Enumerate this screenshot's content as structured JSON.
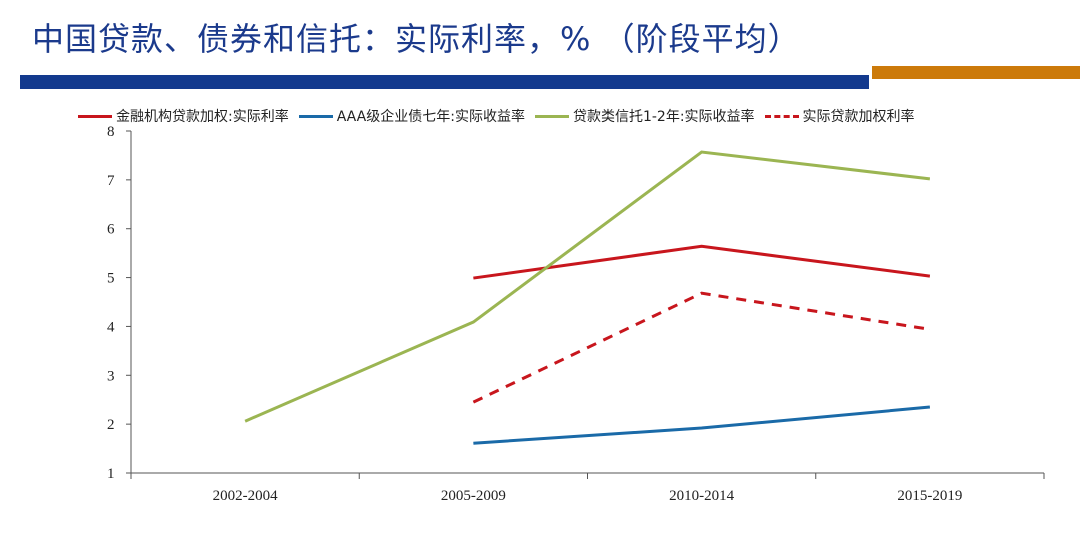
{
  "title": "中国贷款、债券和信托：实际利率，% （阶段平均）",
  "colors": {
    "title": "#1b3a8c",
    "bar_blue": "#133a8e",
    "bar_orange": "#cc7a0a"
  },
  "chart_data": {
    "type": "line",
    "categories": [
      "2002-2004",
      "2005-2009",
      "2010-2014",
      "2015-2019"
    ],
    "ylim": [
      1,
      8
    ],
    "yticks": [
      1,
      2,
      3,
      4,
      5,
      6,
      7,
      8
    ],
    "grid": false,
    "legend": "top",
    "series": [
      {
        "name": "金融机构贷款加权:实际利率",
        "color": "#c8161d",
        "dash": false,
        "values": [
          null,
          4.99,
          5.64,
          5.03
        ]
      },
      {
        "name": "AAA级企业债七年:实际收益率",
        "color": "#1a6aa8",
        "dash": false,
        "values": [
          null,
          1.61,
          1.92,
          2.35
        ]
      },
      {
        "name": "贷款类信托1-2年:实际收益率",
        "color": "#9bb552",
        "dash": false,
        "values": [
          2.06,
          4.09,
          7.57,
          7.02
        ]
      },
      {
        "name": "实际贷款加权利率",
        "color": "#c8161d",
        "dash": true,
        "values": [
          null,
          2.45,
          4.68,
          3.94
        ]
      }
    ]
  }
}
